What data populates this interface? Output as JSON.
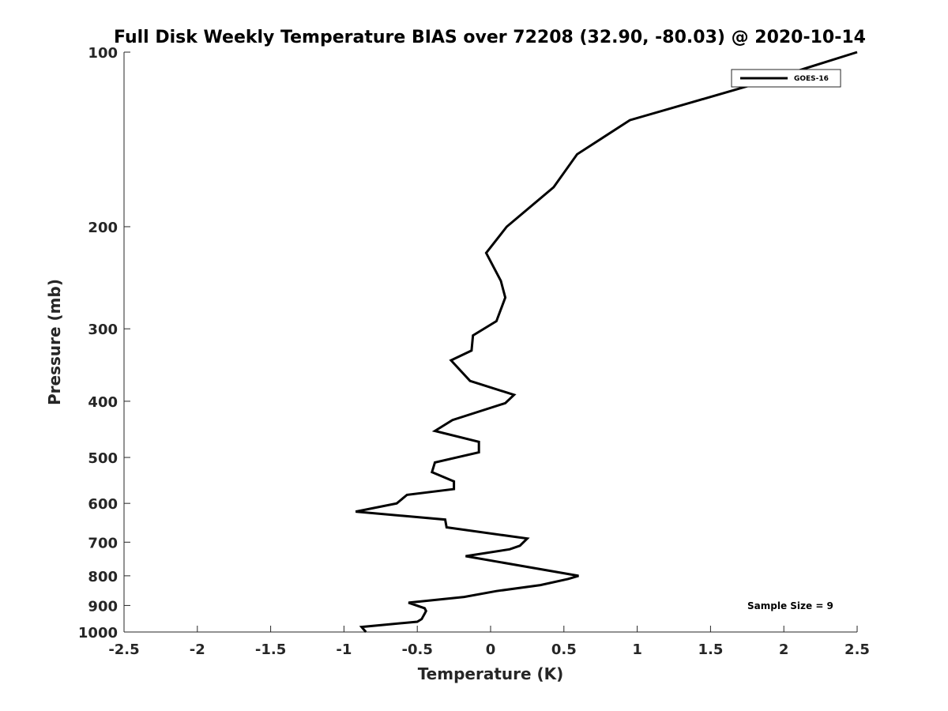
{
  "chart_data": {
    "type": "line",
    "title": "Full Disk Weekly Temperature BIAS over 72208 (32.90, -80.03) @ 2020-10-14",
    "xlabel": "Temperature (K)",
    "ylabel": "Pressure (mb)",
    "xlim": [
      -2.5,
      2.5
    ],
    "ylim": [
      1000,
      100
    ],
    "yscale": "log",
    "x_ticks": [
      "-2.5",
      "-2",
      "-1.5",
      "-1",
      "-0.5",
      "0",
      "0.5",
      "1",
      "1.5",
      "2",
      "2.5"
    ],
    "y_ticks": [
      "100",
      "200",
      "300",
      "400",
      "500",
      "600",
      "700",
      "800",
      "900",
      "1000"
    ],
    "grid": false,
    "legend_position": "top-right",
    "line_color": "#000000",
    "series": [
      {
        "name": "GOES-16",
        "points": [
          [
            2.5,
            100
          ],
          [
            1.83,
            113
          ],
          [
            0.95,
            131
          ],
          [
            0.59,
            150
          ],
          [
            0.43,
            171
          ],
          [
            0.11,
            200
          ],
          [
            -0.03,
            222
          ],
          [
            0.07,
            248
          ],
          [
            0.1,
            265
          ],
          [
            0.04,
            291
          ],
          [
            -0.12,
            308
          ],
          [
            -0.13,
            327
          ],
          [
            -0.27,
            340
          ],
          [
            -0.14,
            369
          ],
          [
            0.16,
            390
          ],
          [
            0.1,
            403
          ],
          [
            -0.26,
            431
          ],
          [
            -0.38,
            450
          ],
          [
            -0.08,
            470
          ],
          [
            -0.08,
            490
          ],
          [
            -0.38,
            510
          ],
          [
            -0.4,
            530
          ],
          [
            -0.25,
            550
          ],
          [
            -0.25,
            567
          ],
          [
            -0.57,
            580
          ],
          [
            -0.64,
            600
          ],
          [
            -0.92,
            620
          ],
          [
            -0.31,
            640
          ],
          [
            -0.3,
            660
          ],
          [
            0.25,
            690
          ],
          [
            0.2,
            710
          ],
          [
            0.13,
            720
          ],
          [
            -0.17,
            740
          ],
          [
            0.6,
            800
          ],
          [
            0.53,
            810
          ],
          [
            0.34,
            830
          ],
          [
            0.04,
            850
          ],
          [
            -0.18,
            870
          ],
          [
            -0.56,
            890
          ],
          [
            -0.45,
            910
          ],
          [
            -0.44,
            920
          ],
          [
            -0.45,
            930
          ],
          [
            -0.46,
            940
          ],
          [
            -0.47,
            950
          ],
          [
            -0.5,
            960
          ],
          [
            -0.88,
            980
          ],
          [
            -0.85,
            1000
          ]
        ]
      }
    ],
    "annotation": "Sample Size = 9"
  }
}
